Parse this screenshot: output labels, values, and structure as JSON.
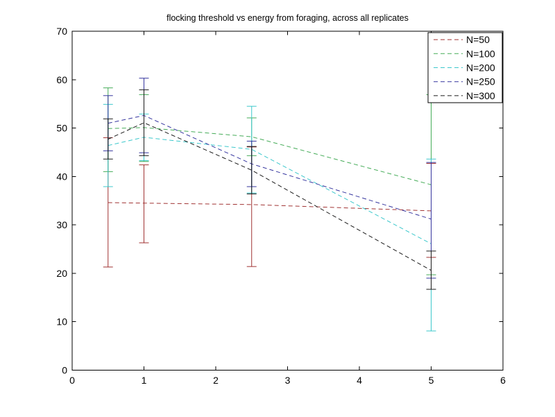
{
  "figure": {
    "background": "#ffffff",
    "axis_color": "#000000"
  },
  "chart_data": {
    "type": "line",
    "title": "flocking threshold vs energy from foraging, across all replicates",
    "xlabel": "",
    "ylabel": "",
    "xlim": [
      0,
      6
    ],
    "ylim": [
      0,
      70
    ],
    "x_ticks": [
      0,
      1,
      2,
      3,
      4,
      5,
      6
    ],
    "y_ticks": [
      0,
      10,
      20,
      30,
      40,
      50,
      60,
      70
    ],
    "grid": false,
    "line_style": "dashed",
    "error_bars": true,
    "legend": {
      "position": "top-right-inside",
      "entries": [
        "N=50",
        "N=100",
        "N=200",
        "N=250",
        "N=300"
      ]
    },
    "x": [
      0.5,
      1,
      2.5,
      5
    ],
    "series": [
      {
        "name": "N=50",
        "color": "#a03232",
        "y": [
          34.6,
          34.5,
          34.2,
          32.9
        ],
        "err_low": [
          21.3,
          26.3,
          21.4,
          23.3
        ],
        "err_high": [
          48.0,
          42.4,
          46.1,
          42.7
        ]
      },
      {
        "name": "N=100",
        "color": "#44ab57",
        "y": [
          49.9,
          50.1,
          48.2,
          38.3
        ],
        "err_low": [
          41.0,
          43.1,
          44.3,
          19.7
        ],
        "err_high": [
          58.3,
          56.9,
          52.1,
          56.9
        ]
      },
      {
        "name": "N=200",
        "color": "#3cc8cc",
        "y": [
          46.4,
          48.1,
          45.6,
          26.1
        ],
        "err_low": [
          37.9,
          43.3,
          36.6,
          8.1
        ],
        "err_high": [
          54.9,
          52.9,
          54.5,
          43.6
        ]
      },
      {
        "name": "N=250",
        "color": "#34349e",
        "y": [
          51.0,
          52.6,
          42.6,
          31.2
        ],
        "err_low": [
          45.3,
          44.9,
          37.9,
          19.0
        ],
        "err_high": [
          56.7,
          60.3,
          47.3,
          42.9
        ]
      },
      {
        "name": "N=300",
        "color": "#1a1a1a",
        "y": [
          47.7,
          51.1,
          41.3,
          20.6
        ],
        "err_low": [
          43.6,
          44.3,
          36.4,
          16.7
        ],
        "err_high": [
          51.9,
          57.9,
          46.2,
          24.6
        ]
      }
    ]
  }
}
